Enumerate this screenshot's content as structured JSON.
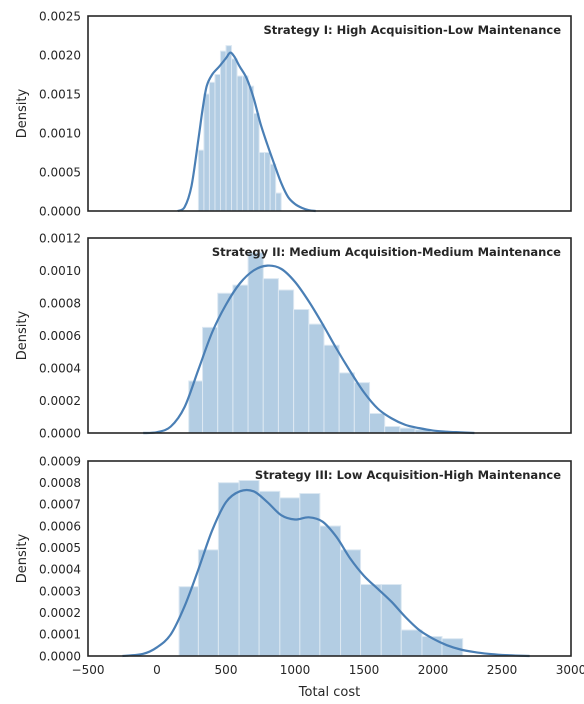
{
  "chart_data": [
    {
      "type": "histogram+kde",
      "title": "Strategy I: High Acquisition-Low Maintenance",
      "ylabel": "Density",
      "xlabel": "",
      "xlim": [
        -500,
        3000
      ],
      "ylim": [
        0,
        0.0025
      ],
      "xticks": [],
      "yticks": [
        0.0,
        0.0005,
        0.001,
        0.0015,
        0.002,
        0.0025
      ],
      "ytick_labels": [
        "0.0000",
        "0.0005",
        "0.0010",
        "0.0015",
        "0.0020",
        "0.0025"
      ],
      "bins": [
        {
          "x0": 300,
          "x1": 340,
          "density": 0.00078
        },
        {
          "x0": 340,
          "x1": 380,
          "density": 0.0015
        },
        {
          "x0": 380,
          "x1": 420,
          "density": 0.00165
        },
        {
          "x0": 420,
          "x1": 460,
          "density": 0.00175
        },
        {
          "x0": 460,
          "x1": 500,
          "density": 0.00205
        },
        {
          "x0": 500,
          "x1": 540,
          "density": 0.00212
        },
        {
          "x0": 540,
          "x1": 580,
          "density": 0.00195
        },
        {
          "x0": 580,
          "x1": 620,
          "density": 0.00173
        },
        {
          "x0": 620,
          "x1": 660,
          "density": 0.00173
        },
        {
          "x0": 660,
          "x1": 700,
          "density": 0.0016
        },
        {
          "x0": 700,
          "x1": 740,
          "density": 0.00125
        },
        {
          "x0": 740,
          "x1": 780,
          "density": 0.00075
        },
        {
          "x0": 780,
          "x1": 820,
          "density": 0.00075
        },
        {
          "x0": 820,
          "x1": 860,
          "density": 0.0006
        },
        {
          "x0": 860,
          "x1": 900,
          "density": 0.00023
        }
      ],
      "kde": {
        "x": [
          150,
          200,
          250,
          300,
          330,
          360,
          400,
          450,
          500,
          530,
          560,
          600,
          650,
          700,
          750,
          800,
          850,
          900,
          950,
          1000,
          1050,
          1100,
          1150
        ],
        "y": [
          0.0,
          5e-05,
          0.00032,
          0.00092,
          0.0013,
          0.0016,
          0.00175,
          0.00185,
          0.00196,
          0.00203,
          0.00198,
          0.00185,
          0.0017,
          0.00145,
          0.00112,
          0.00085,
          0.0006,
          0.00036,
          0.00018,
          9e-05,
          4e-05,
          1e-05,
          0.0
        ]
      }
    },
    {
      "type": "histogram+kde",
      "title": "Strategy II: Medium Acquisition-Medium Maintenance",
      "ylabel": "Density",
      "xlabel": "",
      "xlim": [
        -500,
        3000
      ],
      "ylim": [
        0,
        0.0012
      ],
      "xticks": [],
      "yticks": [
        0.0,
        0.0002,
        0.0004,
        0.0006,
        0.0008,
        0.001,
        0.0012
      ],
      "ytick_labels": [
        "0.0000",
        "0.0002",
        "0.0004",
        "0.0006",
        "0.0008",
        "0.0010",
        "0.0012"
      ],
      "bins": [
        {
          "x0": 230,
          "x1": 330,
          "density": 0.00032
        },
        {
          "x0": 330,
          "x1": 440,
          "density": 0.00065
        },
        {
          "x0": 440,
          "x1": 550,
          "density": 0.00086
        },
        {
          "x0": 550,
          "x1": 660,
          "density": 0.00091
        },
        {
          "x0": 660,
          "x1": 770,
          "density": 0.00111
        },
        {
          "x0": 770,
          "x1": 880,
          "density": 0.00095
        },
        {
          "x0": 880,
          "x1": 990,
          "density": 0.00088
        },
        {
          "x0": 990,
          "x1": 1100,
          "density": 0.00076
        },
        {
          "x0": 1100,
          "x1": 1210,
          "density": 0.00067
        },
        {
          "x0": 1210,
          "x1": 1320,
          "density": 0.00054
        },
        {
          "x0": 1320,
          "x1": 1430,
          "density": 0.00037
        },
        {
          "x0": 1430,
          "x1": 1540,
          "density": 0.00031
        },
        {
          "x0": 1540,
          "x1": 1650,
          "density": 0.00012
        },
        {
          "x0": 1650,
          "x1": 1760,
          "density": 4e-05
        },
        {
          "x0": 1760,
          "x1": 1870,
          "density": 3e-05
        },
        {
          "x0": 1870,
          "x1": 1980,
          "density": 2e-05
        }
      ],
      "kde": {
        "x": [
          -100,
          0,
          100,
          200,
          300,
          400,
          500,
          600,
          700,
          800,
          900,
          1000,
          1100,
          1200,
          1300,
          1400,
          1500,
          1600,
          1700,
          1800,
          1900,
          2000,
          2100,
          2200,
          2300
        ],
        "y": [
          0.0,
          5e-06,
          4e-05,
          0.00016,
          0.00039,
          0.00062,
          0.00079,
          0.00092,
          0.001,
          0.00103,
          0.00101,
          0.00093,
          0.00081,
          0.00067,
          0.00052,
          0.00038,
          0.00025,
          0.00015,
          9e-05,
          5e-05,
          3e-05,
          1.5e-05,
          8e-06,
          4e-06,
          0.0
        ]
      }
    },
    {
      "type": "histogram+kde",
      "title": "Strategy III: Low Acquisition-High Maintenance",
      "ylabel": "Density",
      "xlabel": "Total cost",
      "xlim": [
        -500,
        3000
      ],
      "ylim": [
        0,
        0.0009
      ],
      "xticks": [
        -500,
        0,
        500,
        1000,
        1500,
        2000,
        2500,
        3000
      ],
      "xtick_labels": [
        "−500",
        "0",
        "500",
        "1000",
        "1500",
        "2000",
        "2500",
        "3000"
      ],
      "yticks": [
        0.0,
        0.0001,
        0.0002,
        0.0003,
        0.0004,
        0.0005,
        0.0006,
        0.0007,
        0.0008,
        0.0009
      ],
      "ytick_labels": [
        "0.0000",
        "0.0001",
        "0.0002",
        "0.0003",
        "0.0004",
        "0.0005",
        "0.0006",
        "0.0007",
        "0.0008",
        "0.0009"
      ],
      "bins": [
        {
          "x0": 160,
          "x1": 300,
          "density": 0.00032
        },
        {
          "x0": 300,
          "x1": 445,
          "density": 0.00049
        },
        {
          "x0": 445,
          "x1": 595,
          "density": 0.0008
        },
        {
          "x0": 595,
          "x1": 740,
          "density": 0.00081
        },
        {
          "x0": 740,
          "x1": 890,
          "density": 0.00076
        },
        {
          "x0": 890,
          "x1": 1035,
          "density": 0.00073
        },
        {
          "x0": 1035,
          "x1": 1180,
          "density": 0.00075
        },
        {
          "x0": 1180,
          "x1": 1330,
          "density": 0.0006
        },
        {
          "x0": 1330,
          "x1": 1475,
          "density": 0.00049
        },
        {
          "x0": 1475,
          "x1": 1625,
          "density": 0.00033
        },
        {
          "x0": 1625,
          "x1": 1770,
          "density": 0.00033
        },
        {
          "x0": 1770,
          "x1": 1920,
          "density": 0.00012
        },
        {
          "x0": 1920,
          "x1": 2065,
          "density": 9e-05
        },
        {
          "x0": 2065,
          "x1": 2215,
          "density": 8e-05
        }
      ],
      "kde": {
        "x": [
          -250,
          -100,
          0,
          100,
          200,
          300,
          400,
          500,
          600,
          700,
          800,
          900,
          1000,
          1100,
          1200,
          1300,
          1400,
          1500,
          1600,
          1700,
          1800,
          1900,
          2000,
          2100,
          2200,
          2300,
          2400,
          2500,
          2600,
          2700
        ],
        "y": [
          0.0,
          1e-05,
          4e-05,
          0.0001,
          0.00023,
          0.0004,
          0.00058,
          0.00071,
          0.00076,
          0.00076,
          0.00071,
          0.00065,
          0.00063,
          0.00064,
          0.00062,
          0.00055,
          0.00045,
          0.00037,
          0.00031,
          0.00025,
          0.00018,
          0.00012,
          8e-05,
          5e-05,
          3e-05,
          1.8e-05,
          1e-05,
          5e-06,
          2e-06,
          0.0
        ]
      }
    }
  ]
}
